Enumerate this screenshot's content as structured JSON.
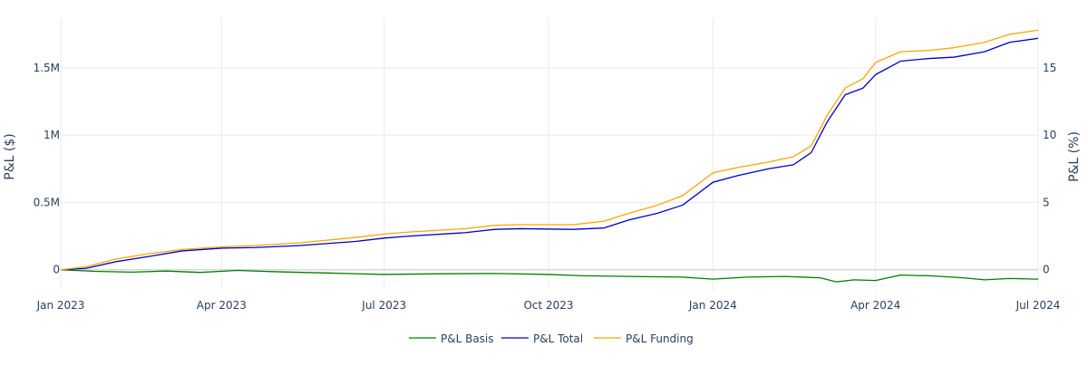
{
  "chart_data": {
    "type": "line",
    "title": "",
    "xlabel": "",
    "ylabel": "P&L ($)",
    "y2label": "P&L (%)",
    "x_range": [
      "2023-01-01",
      "2024-07-01"
    ],
    "ylim": [
      -150000,
      1870000
    ],
    "y2lim": [
      -1.5,
      18.7
    ],
    "grid": true,
    "legend": "bottom-center",
    "x_ticks": [
      {
        "date": "2023-01-01",
        "label": "Jan 2023"
      },
      {
        "date": "2023-04-01",
        "label": "Apr 2023"
      },
      {
        "date": "2023-07-01",
        "label": "Jul 2023"
      },
      {
        "date": "2023-10-01",
        "label": "Oct 2023"
      },
      {
        "date": "2024-01-01",
        "label": "Jan 2024"
      },
      {
        "date": "2024-04-01",
        "label": "Apr 2024"
      },
      {
        "date": "2024-07-01",
        "label": "Jul 2024"
      }
    ],
    "y_ticks": [
      {
        "value": 0,
        "label": "0"
      },
      {
        "value": 500000,
        "label": "0.5M"
      },
      {
        "value": 1000000,
        "label": "1M"
      },
      {
        "value": 1500000,
        "label": "1.5M"
      }
    ],
    "y2_ticks": [
      {
        "value": 0,
        "label": "0"
      },
      {
        "value": 5,
        "label": "5"
      },
      {
        "value": 10,
        "label": "10"
      },
      {
        "value": 15,
        "label": "15"
      }
    ],
    "series": [
      {
        "name": "P&L Basis",
        "color": "#008000",
        "x": [
          "2023-01-01",
          "2023-01-20",
          "2023-02-10",
          "2023-03-01",
          "2023-03-20",
          "2023-04-10",
          "2023-05-01",
          "2023-06-01",
          "2023-07-01",
          "2023-08-01",
          "2023-09-01",
          "2023-10-01",
          "2023-10-20",
          "2023-11-15",
          "2023-12-15",
          "2024-01-01",
          "2024-01-20",
          "2024-02-10",
          "2024-03-01",
          "2024-03-10",
          "2024-03-20",
          "2024-04-01",
          "2024-04-15",
          "2024-05-01",
          "2024-05-20",
          "2024-06-01",
          "2024-06-15",
          "2024-07-01"
        ],
        "values": [
          0,
          -12000,
          -18000,
          -10000,
          -20000,
          -5000,
          -15000,
          -25000,
          -35000,
          -30000,
          -28000,
          -35000,
          -45000,
          -50000,
          -55000,
          -70000,
          -55000,
          -50000,
          -60000,
          -90000,
          -75000,
          -80000,
          -40000,
          -45000,
          -60000,
          -75000,
          -65000,
          -70000
        ]
      },
      {
        "name": "P&L Total",
        "color": "#0000cc",
        "x": [
          "2023-01-01",
          "2023-01-15",
          "2023-02-01",
          "2023-02-20",
          "2023-03-10",
          "2023-04-01",
          "2023-04-20",
          "2023-05-15",
          "2023-06-15",
          "2023-07-01",
          "2023-07-15",
          "2023-08-15",
          "2023-09-01",
          "2023-09-15",
          "2023-10-15",
          "2023-11-01",
          "2023-11-15",
          "2023-12-01",
          "2023-12-15",
          "2024-01-01",
          "2024-01-15",
          "2024-02-01",
          "2024-02-15",
          "2024-02-25",
          "2024-03-05",
          "2024-03-15",
          "2024-03-25",
          "2024-04-01",
          "2024-04-15",
          "2024-05-01",
          "2024-05-15",
          "2024-06-01",
          "2024-06-15",
          "2024-07-01"
        ],
        "values": [
          0,
          10000,
          60000,
          100000,
          140000,
          160000,
          165000,
          180000,
          210000,
          235000,
          250000,
          275000,
          300000,
          305000,
          300000,
          310000,
          370000,
          420000,
          480000,
          650000,
          700000,
          750000,
          780000,
          870000,
          1100000,
          1300000,
          1350000,
          1450000,
          1550000,
          1570000,
          1580000,
          1620000,
          1690000,
          1720000
        ]
      },
      {
        "name": "P&L Funding",
        "color": "#ffa500",
        "x": [
          "2023-01-01",
          "2023-01-15",
          "2023-02-01",
          "2023-02-20",
          "2023-03-10",
          "2023-04-01",
          "2023-04-20",
          "2023-05-15",
          "2023-06-15",
          "2023-07-01",
          "2023-07-15",
          "2023-08-15",
          "2023-09-01",
          "2023-09-15",
          "2023-10-15",
          "2023-11-01",
          "2023-11-15",
          "2023-12-01",
          "2023-12-15",
          "2024-01-01",
          "2024-01-15",
          "2024-02-01",
          "2024-02-15",
          "2024-02-25",
          "2024-03-05",
          "2024-03-15",
          "2024-03-25",
          "2024-04-01",
          "2024-04-15",
          "2024-05-01",
          "2024-05-15",
          "2024-06-01",
          "2024-06-15",
          "2024-07-01"
        ],
        "values": [
          0,
          22000,
          80000,
          120000,
          150000,
          170000,
          180000,
          200000,
          240000,
          265000,
          280000,
          305000,
          330000,
          335000,
          335000,
          360000,
          420000,
          480000,
          550000,
          720000,
          760000,
          800000,
          840000,
          920000,
          1150000,
          1350000,
          1420000,
          1540000,
          1620000,
          1630000,
          1650000,
          1690000,
          1750000,
          1780000
        ]
      }
    ]
  }
}
